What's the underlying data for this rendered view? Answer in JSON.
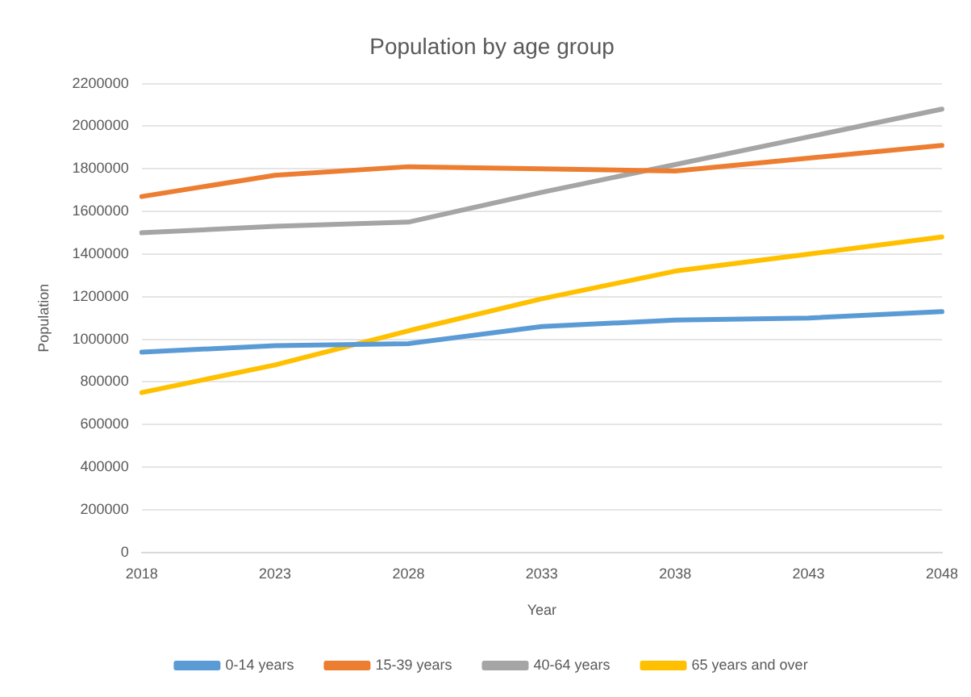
{
  "chart_data": {
    "type": "line",
    "title": "Population by age group",
    "xlabel": "Year",
    "ylabel": "Population",
    "categories": [
      "2018",
      "2023",
      "2028",
      "2033",
      "2038",
      "2043",
      "2048"
    ],
    "series": [
      {
        "name": "0-14 years",
        "color": "#5b9bd5",
        "values": [
          940000,
          970000,
          980000,
          1060000,
          1090000,
          1100000,
          1130000
        ]
      },
      {
        "name": "15-39 years",
        "color": "#ed7d31",
        "values": [
          1670000,
          1770000,
          1810000,
          1800000,
          1790000,
          1850000,
          1910000
        ]
      },
      {
        "name": "40-64 years",
        "color": "#a5a5a5",
        "values": [
          1500000,
          1530000,
          1550000,
          1690000,
          1820000,
          1950000,
          2080000
        ]
      },
      {
        "name": "65 years and over",
        "color": "#ffc000",
        "values": [
          750000,
          880000,
          1040000,
          1190000,
          1320000,
          1400000,
          1480000
        ]
      }
    ],
    "ylim": [
      0,
      2200000
    ],
    "yticks": [
      0,
      200000,
      400000,
      600000,
      800000,
      1000000,
      1200000,
      1400000,
      1600000,
      1800000,
      2000000,
      2200000
    ],
    "grid": "y",
    "legend": "bottom",
    "marker": "none",
    "line_style": "solid"
  }
}
